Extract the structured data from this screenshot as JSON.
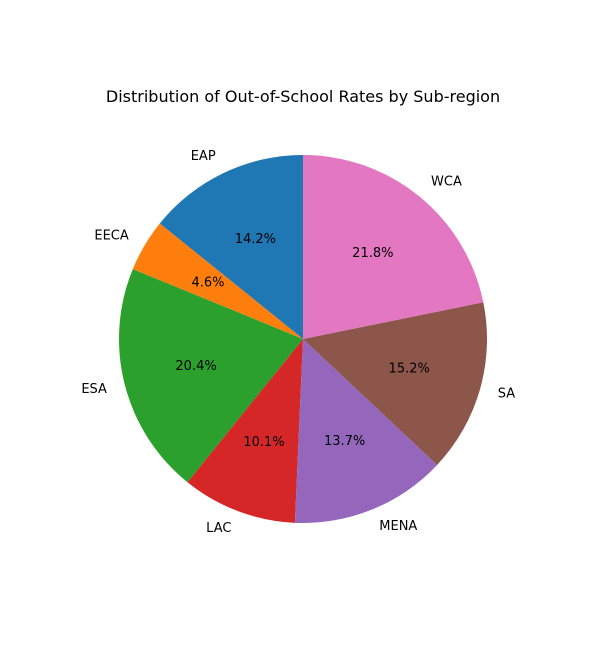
{
  "chart_data": {
    "type": "pie",
    "title": "Distribution of Out-of-School Rates by Sub-region",
    "start_angle_deg": 90,
    "direction": "counterclockwise",
    "slices": [
      {
        "label": "EAP",
        "value": 14.2,
        "pct_label": "14.2%",
        "color": "#1f77b4"
      },
      {
        "label": "EECA",
        "value": 4.6,
        "pct_label": "4.6%",
        "color": "#ff7f0e"
      },
      {
        "label": "ESA",
        "value": 20.4,
        "pct_label": "20.4%",
        "color": "#2ca02c"
      },
      {
        "label": "LAC",
        "value": 10.1,
        "pct_label": "10.1%",
        "color": "#d62728"
      },
      {
        "label": "MENA",
        "value": 13.7,
        "pct_label": "13.7%",
        "color": "#9467bd"
      },
      {
        "label": "SA",
        "value": 15.2,
        "pct_label": "15.2%",
        "color": "#8c564b"
      },
      {
        "label": "WCA",
        "value": 21.8,
        "pct_label": "21.8%",
        "color": "#e377c2"
      }
    ]
  }
}
